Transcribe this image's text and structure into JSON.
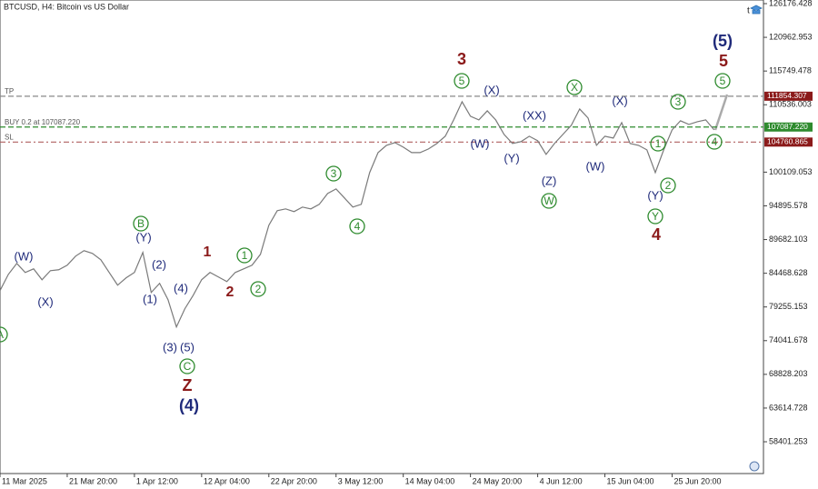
{
  "chart_data": {
    "type": "line",
    "title": "BTCUSD, H4:  Bitcoin vs US Dollar",
    "x": [
      0,
      8,
      16,
      24,
      32,
      40,
      48,
      56,
      64,
      72,
      80,
      88,
      96,
      104,
      112,
      120,
      128,
      136,
      144,
      152,
      160,
      168,
      176,
      184,
      192,
      200,
      208,
      216,
      224,
      232,
      240,
      248,
      256,
      264,
      272,
      280,
      288,
      296,
      304,
      312,
      320,
      328,
      336,
      344,
      352,
      360,
      368,
      376,
      384,
      392,
      400,
      408,
      416,
      424,
      432,
      440,
      448,
      456,
      464,
      472,
      480,
      488,
      496,
      504,
      512,
      520,
      528,
      536,
      544,
      552,
      560,
      568,
      576,
      584,
      592,
      600,
      608,
      616,
      624,
      632,
      640,
      648,
      656,
      664,
      672,
      680
    ],
    "series": [
      {
        "name": "BTCUSD",
        "color": "#7a7a7a",
        "values": [
          81780,
          84308,
          85993,
          84588,
          85150,
          83464,
          84869,
          85010,
          85712,
          87117,
          87960,
          87539,
          86555,
          84588,
          82621,
          83745,
          84588,
          87679,
          81497,
          82902,
          80373,
          76158,
          78968,
          81075,
          83464,
          84588,
          83885,
          83183,
          84588,
          85150,
          85712,
          87398,
          91894,
          94142,
          94423,
          94002,
          94704,
          94423,
          95126,
          96812,
          97514,
          96109,
          94704,
          95126,
          100043,
          103134,
          104258,
          104680,
          103977,
          103134,
          103134,
          103696,
          104539,
          105663,
          108192,
          111002,
          108754,
          108192,
          109597,
          108192,
          105944,
          104539,
          104820,
          105663,
          104961,
          102853,
          104539,
          105944,
          107349,
          109878,
          108473,
          104258,
          105663,
          105382,
          107771,
          104539,
          104258,
          103555,
          100043,
          103555,
          106646,
          108051,
          107490,
          107911,
          108192,
          106646
        ]
      }
    ],
    "xlim": [
      0,
      727
    ],
    "xticks": [
      {
        "value": 0,
        "label": "11 Mar 2025"
      },
      {
        "value": 64,
        "label": "21 Mar 20:00"
      },
      {
        "value": 128,
        "label": "1 Apr 12:00"
      },
      {
        "value": 192,
        "label": "12 Apr 04:00"
      },
      {
        "value": 256,
        "label": "22 Apr 20:00"
      },
      {
        "value": 320,
        "label": "3 May 12:00"
      },
      {
        "value": 384,
        "label": "14 May 04:00"
      },
      {
        "value": 448,
        "label": "24 May 20:00"
      },
      {
        "value": 512,
        "label": "4 Jun 12:00"
      },
      {
        "value": 576,
        "label": "15 Jun 04:00"
      },
      {
        "value": 640,
        "label": "25 Jun 20:00"
      }
    ],
    "ylim": [
      53483,
      126738
    ],
    "yticks": [
      126176.428,
      120962.953,
      115749.478,
      110536.003,
      100109.053,
      94895.578,
      89682.103,
      84468.628,
      79255.153,
      74041.678,
      68828.203,
      63614.728,
      58401.253
    ],
    "levels": [
      {
        "label": "TP",
        "value": 111854.307,
        "price_label": "111854.307",
        "color": "#8b1a1a"
      },
      {
        "label": "BUY 0.2 at 107087.220",
        "value": 107087.22,
        "price_label": "107087.220",
        "color": "#2e8b2e"
      },
      {
        "label": "SL",
        "value": 104760.865,
        "price_label": "104760.865",
        "color": "#8b1a1a"
      }
    ],
    "wave_labels": [
      "(W)",
      "(X)",
      "(Y)",
      "(2)",
      "(1)",
      "(4)",
      "(3)",
      "(5)",
      "B",
      "C",
      "Z",
      "(4)",
      "1",
      "2",
      "1",
      "2",
      "3",
      "4",
      "3",
      "5",
      "(X)",
      "(W)",
      "(XX)",
      "(Y)",
      "(Z)",
      "W",
      "X",
      "(X)",
      "(W)",
      "1",
      "3",
      "2",
      "(Y)",
      "Y",
      "4",
      "4",
      "5",
      "5",
      "(5)",
      "A"
    ]
  }
}
